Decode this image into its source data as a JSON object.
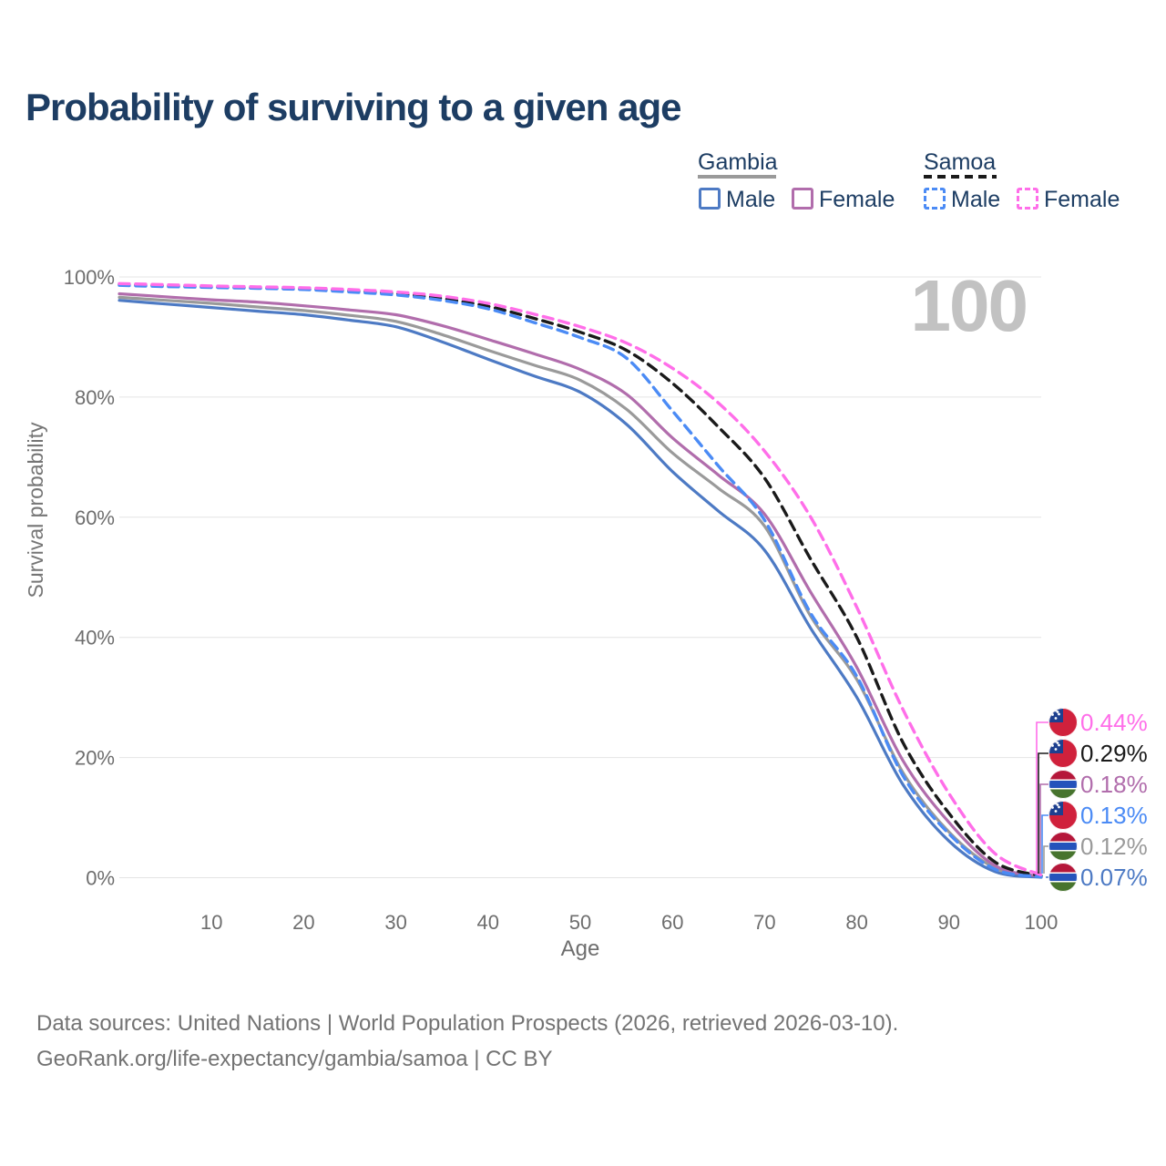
{
  "title": "Probability of surviving to a given age",
  "watermark": "100",
  "legend": {
    "gambia": {
      "label": "Gambia",
      "male_label": "Male",
      "female_label": "Female",
      "male_color": "#4d7ac4",
      "female_color": "#b16dac",
      "line_color": "#9a9a9a",
      "line_style": "solid"
    },
    "samoa": {
      "label": "Samoa",
      "male_label": "Male",
      "female_label": "Female",
      "male_color": "#4b8bf5",
      "female_color": "#ff6ee9",
      "line_color": "#1a1a1a",
      "line_style": "dashed"
    }
  },
  "chart_data": {
    "type": "line",
    "title": "Probability of surviving to a given age",
    "xlabel": "Age",
    "ylabel": "Survival probability",
    "xlim": [
      0,
      100
    ],
    "ylim": [
      0,
      100
    ],
    "grid": "horizontal",
    "x_ticks": [
      10,
      20,
      30,
      40,
      50,
      60,
      70,
      80,
      90,
      100
    ],
    "y_ticks": {
      "values": [
        0,
        20,
        40,
        60,
        80,
        100
      ],
      "labels": [
        "0%",
        "20%",
        "40%",
        "60%",
        "80%",
        "100%"
      ]
    },
    "ages": [
      0,
      5,
      10,
      15,
      20,
      25,
      30,
      35,
      40,
      45,
      50,
      55,
      60,
      65,
      70,
      75,
      80,
      85,
      90,
      95,
      100
    ],
    "series": [
      {
        "name": "Gambia",
        "country": "Gambia",
        "sex": "Both",
        "color": "#9a9a9a",
        "dash": false,
        "end_label": "0.12%",
        "flag": "gambia",
        "values": [
          96.6,
          96.1,
          95.6,
          95.0,
          94.4,
          93.6,
          92.6,
          90.4,
          87.8,
          85.3,
          82.8,
          78.0,
          70.7,
          64.8,
          58.5,
          43.5,
          33.0,
          17.5,
          7.6,
          1.6,
          0.12
        ]
      },
      {
        "name": "Gambia Male",
        "country": "Gambia",
        "sex": "Male",
        "color": "#4d7ac4",
        "dash": false,
        "end_label": "0.07%",
        "flag": "gambia",
        "values": [
          96.1,
          95.5,
          94.9,
          94.3,
          93.7,
          92.8,
          91.7,
          89.2,
          86.3,
          83.5,
          80.8,
          75.5,
          67.6,
          61.0,
          54.5,
          41.5,
          30.0,
          15.5,
          6.1,
          1.0,
          0.07
        ]
      },
      {
        "name": "Gambia Female",
        "country": "Gambia",
        "sex": "Female",
        "color": "#b16dac",
        "dash": false,
        "end_label": "0.18%",
        "flag": "gambia",
        "values": [
          97.2,
          96.7,
          96.2,
          95.8,
          95.2,
          94.5,
          93.7,
          91.9,
          89.6,
          87.2,
          84.6,
          80.5,
          73.2,
          67.0,
          60.5,
          47.5,
          35.0,
          19.5,
          9.2,
          2.0,
          0.18
        ]
      },
      {
        "name": "Samoa",
        "country": "Samoa",
        "sex": "Both",
        "color": "#1a1a1a",
        "dash": true,
        "end_label": "0.29%",
        "flag": "samoa",
        "values": [
          98.75,
          98.55,
          98.35,
          98.2,
          98.0,
          97.7,
          97.2,
          96.4,
          95.1,
          93.1,
          90.8,
          87.8,
          82.3,
          75.0,
          66.5,
          53.0,
          40.0,
          22.5,
          10.7,
          2.6,
          0.29
        ]
      },
      {
        "name": "Samoa Male",
        "country": "Samoa",
        "sex": "Male",
        "color": "#4b8bf5",
        "dash": true,
        "end_label": "0.13%",
        "flag": "samoa",
        "values": [
          98.6,
          98.4,
          98.25,
          98.1,
          97.9,
          97.5,
          97.0,
          96.1,
          94.7,
          92.4,
          89.9,
          86.5,
          77.7,
          68.5,
          59.5,
          44.0,
          33.5,
          17.0,
          7.3,
          1.4,
          0.13
        ]
      },
      {
        "name": "Samoa Female",
        "country": "Samoa",
        "sex": "Female",
        "color": "#ff6ee9",
        "dash": true,
        "end_label": "0.44%",
        "flag": "samoa",
        "values": [
          98.9,
          98.7,
          98.5,
          98.35,
          98.2,
          97.9,
          97.5,
          96.8,
          95.6,
          93.8,
          91.7,
          89.0,
          84.8,
          79.0,
          71.0,
          60.0,
          45.0,
          28.0,
          14.0,
          4.0,
          0.44
        ]
      }
    ],
    "end_labels": [
      {
        "value": "0.44%",
        "series": "Samoa Female",
        "color": "#ff6ee9",
        "flag": "samoa"
      },
      {
        "value": "0.29%",
        "series": "Samoa",
        "color": "#1a1a1a",
        "flag": "samoa"
      },
      {
        "value": "0.18%",
        "series": "Gambia Female",
        "color": "#b16dac",
        "flag": "gambia"
      },
      {
        "value": "0.13%",
        "series": "Samoa Male",
        "color": "#4b8bf5",
        "flag": "samoa"
      },
      {
        "value": "0.12%",
        "series": "Gambia",
        "color": "#9a9a9a",
        "flag": "gambia"
      },
      {
        "value": "0.07%",
        "series": "Gambia Male",
        "color": "#4d7ac4",
        "flag": "gambia"
      }
    ],
    "legend_position": "top-right",
    "flag_colors": {
      "gambia": {
        "red": "#b5173a",
        "blue": "#2553bb",
        "green": "#47742e",
        "white": "#ffffff"
      },
      "samoa": {
        "red": "#d0213c",
        "blue": "#1e3f8f",
        "white": "#ffffff"
      }
    }
  },
  "footer": {
    "line1": "Data sources: United Nations | World Population Prospects (2026, retrieved 2026-03-10).",
    "line2": "GeoRank.org/life-expectancy/gambia/samoa | CC BY"
  }
}
